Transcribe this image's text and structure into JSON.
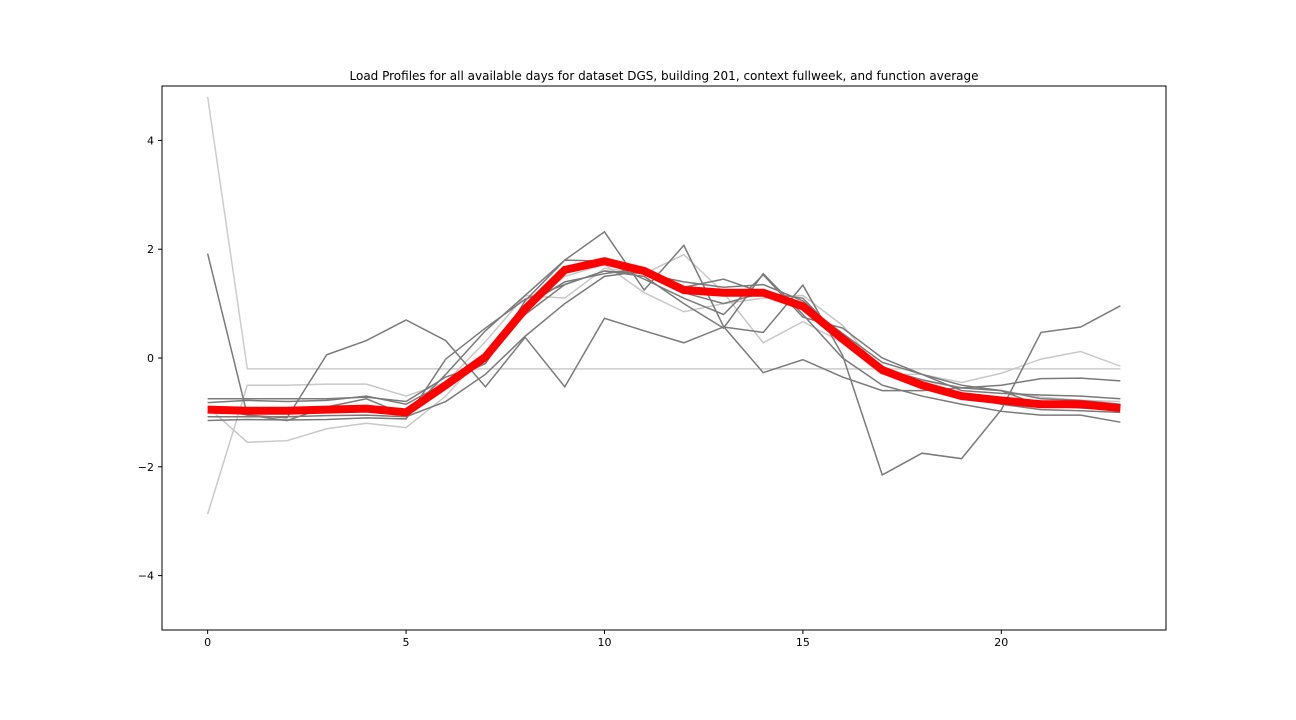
{
  "chart_data": {
    "type": "line",
    "title": "Load Profiles for all available days for dataset DGS, building 201, context fullweek, and function average",
    "xlabel": "",
    "ylabel": "",
    "xlim": [
      -1.15,
      24.15
    ],
    "ylim": [
      -5,
      5
    ],
    "xticks": [
      0,
      5,
      10,
      15,
      20
    ],
    "yticks": [
      -4,
      -2,
      0,
      2,
      4
    ],
    "xtick_labels": [
      "0",
      "5",
      "10",
      "15",
      "20"
    ],
    "ytick_labels": [
      "−4",
      "−2",
      "0",
      "2",
      "4"
    ],
    "grid": false,
    "legend": "none",
    "x": [
      0,
      1,
      2,
      3,
      4,
      5,
      6,
      7,
      8,
      9,
      10,
      11,
      12,
      13,
      14,
      15,
      16,
      17,
      18,
      19,
      20,
      21,
      22,
      23
    ],
    "series": [
      {
        "color": "#cccccc",
        "values": [
          4.8,
          -0.2,
          -0.2,
          -0.2,
          -0.2,
          -0.2,
          -0.2,
          -0.2,
          -0.2,
          -0.2,
          -0.2,
          -0.2,
          -0.2,
          -0.2,
          -0.2,
          -0.2,
          -0.2,
          -0.2,
          -0.2,
          -0.2,
          -0.2,
          -0.2,
          -0.2,
          -0.2
        ]
      },
      {
        "color": "#c8c8c8",
        "values": [
          -2.87,
          -0.5,
          -0.5,
          -0.48,
          -0.48,
          -0.7,
          -0.45,
          0.3,
          1.15,
          1.1,
          1.65,
          1.55,
          1.9,
          1.2,
          0.28,
          0.67,
          0.28,
          -0.3,
          -0.3,
          -0.45,
          -0.28,
          -0.02,
          0.12,
          -0.15
        ]
      },
      {
        "color": "#c8c8c8",
        "values": [
          -0.9,
          -1.55,
          -1.52,
          -1.3,
          -1.2,
          -1.28,
          -0.7,
          0.1,
          0.9,
          1.5,
          1.72,
          1.2,
          0.85,
          1.0,
          1.1,
          1.15,
          0.6,
          -0.25,
          -0.42,
          -0.55,
          -0.6,
          -0.72,
          -0.78,
          -0.8
        ]
      },
      {
        "color": "#7a7a7a",
        "values": [
          1.92,
          -1.05,
          -1.15,
          -0.9,
          -0.75,
          -1.05,
          -0.3,
          0.5,
          1.15,
          1.8,
          2.32,
          1.25,
          2.07,
          0.58,
          -0.27,
          -0.03,
          -0.35,
          -0.6,
          -0.6,
          -0.55,
          -0.5,
          -0.38,
          -0.37,
          -0.42
        ]
      },
      {
        "color": "#7a7a7a",
        "values": [
          -0.75,
          -0.75,
          -0.75,
          -0.75,
          -0.72,
          -0.8,
          -0.35,
          -0.1,
          1.05,
          1.8,
          1.78,
          1.45,
          1.1,
          0.8,
          1.53,
          0.75,
          0.55,
          0.0,
          -0.3,
          -0.6,
          -0.65,
          -0.68,
          -0.7,
          -0.75
        ]
      },
      {
        "color": "#7a7a7a",
        "values": [
          -0.82,
          -0.78,
          -0.8,
          -0.78,
          -0.7,
          -0.85,
          -0.45,
          -0.1,
          0.95,
          1.4,
          1.55,
          1.65,
          1.3,
          1.45,
          1.2,
          1.0,
          0.45,
          -0.08,
          -0.3,
          -0.5,
          -0.6,
          -0.75,
          -0.78,
          -0.85
        ]
      },
      {
        "color": "#7a7a7a",
        "values": [
          -1.0,
          -1.0,
          -1.0,
          -0.98,
          -0.95,
          -1.0,
          -0.55,
          0.05,
          0.8,
          1.35,
          1.6,
          1.55,
          1.4,
          1.3,
          1.35,
          1.05,
          0.4,
          -0.2,
          -0.5,
          -0.7,
          -0.85,
          -0.95,
          -0.97,
          -1.0
        ]
      },
      {
        "color": "#7a7a7a",
        "values": [
          -1.08,
          -1.08,
          -1.08,
          -1.06,
          -1.05,
          -1.08,
          -0.8,
          -0.3,
          0.4,
          1.0,
          1.5,
          1.6,
          1.2,
          1.0,
          1.2,
          1.1,
          0.35,
          -0.2,
          -0.4,
          -0.55,
          -0.6,
          -0.88,
          -0.92,
          -0.95
        ]
      },
      {
        "color": "#7a7a7a",
        "values": [
          -1.15,
          -1.13,
          -1.14,
          -1.13,
          -1.1,
          -1.12,
          -0.02,
          0.55,
          1.08,
          1.35,
          1.6,
          1.5,
          1.0,
          0.55,
          1.55,
          0.8,
          0.0,
          -0.5,
          -0.7,
          -0.85,
          -0.98,
          -1.05,
          -1.05,
          -1.18
        ]
      },
      {
        "color": "#7a7a7a",
        "values": [
          -0.9,
          -1.05,
          -1.1,
          0.06,
          0.32,
          0.7,
          0.32,
          -0.53,
          0.38,
          -0.53,
          0.73,
          0.5,
          0.28,
          0.57,
          0.47,
          1.34,
          0.05,
          -2.15,
          -1.75,
          -1.85,
          -0.95,
          0.47,
          0.57,
          0.96
        ]
      },
      {
        "color": "#ff0000",
        "values": [
          -0.95,
          -0.97,
          -0.97,
          -0.95,
          -0.93,
          -1.0,
          -0.5,
          0.02,
          0.9,
          1.62,
          1.78,
          1.6,
          1.25,
          1.2,
          1.2,
          0.95,
          0.35,
          -0.22,
          -0.5,
          -0.7,
          -0.78,
          -0.85,
          -0.85,
          -0.92
        ]
      }
    ]
  }
}
